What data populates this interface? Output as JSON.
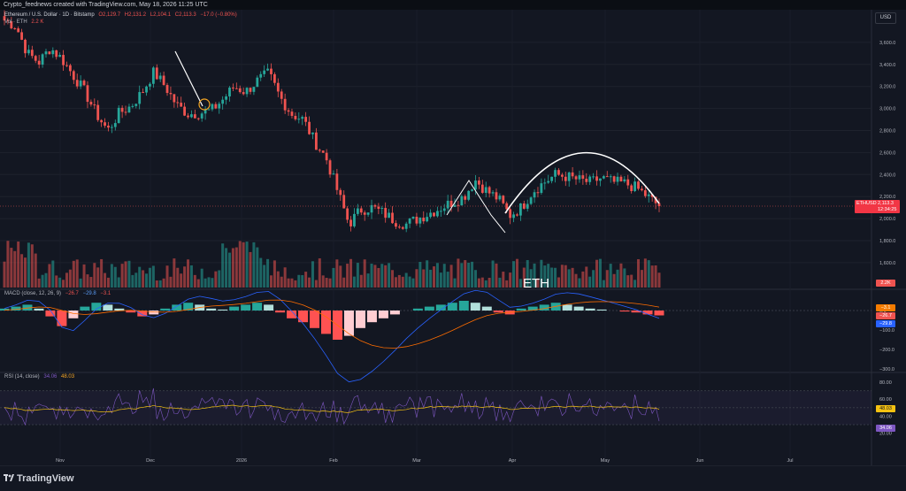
{
  "header": {
    "text": "Crypto_feednews created with TradingView.com, May 18, 2026 11:25 UTC"
  },
  "legend": {
    "title": "Ethereum / U.S. Dollar · 1D · Bitstamp",
    "open": "O2,129.7",
    "high": "H2,131.2",
    "low": "L2,104.1",
    "close": "C2,113.3",
    "change": "−17.0 (−0.80%)",
    "volume_label": "Vol · ETH",
    "volume_value": "2.2 K"
  },
  "macd_legend": {
    "label": "MACD (close, 12, 26, 9)",
    "v1": "−26.7",
    "v2": "−29.8",
    "v3": "−3.1"
  },
  "rsi_legend": {
    "label": "RSI (14, close)",
    "v1": "34.06",
    "v2": "48.03"
  },
  "currency": "USD",
  "watermark": "ETH",
  "price_tag": {
    "symbol": "ETHUSD",
    "price": "2,113.3",
    "countdown": "12:34:25"
  },
  "volume_tag": "2.2K",
  "macd_tags": [
    {
      "text": "−3.1",
      "color": "#f57c00"
    },
    {
      "text": "−26.7",
      "color": "#ef5350"
    },
    {
      "text": "−29.8",
      "color": "#2962ff"
    }
  ],
  "rsi_tags": [
    {
      "text": "48.03",
      "color": "#f5c211"
    },
    {
      "text": "34.06",
      "color": "#7e57c2"
    }
  ],
  "footer": {
    "brand": "TradingView"
  },
  "colors": {
    "up": "#26a69a",
    "down": "#ef5350",
    "bg": "#131722",
    "macd_line": "#2962ff",
    "signal_line": "#ff6d00",
    "rsi_line": "#7e57c2",
    "rsi_ma": "#f5c211"
  },
  "chart_data": {
    "type": "candlestick",
    "title": "Ethereum / U.S. Dollar · 1D · Bitstamp",
    "price_axis": {
      "ticks": [
        1600,
        1800,
        2000,
        2200,
        2400,
        2600,
        2800,
        3000,
        3200,
        3400,
        3600
      ],
      "labels": [
        "1,600.0",
        "1,800.0",
        "2,000.0",
        "2,200.0",
        "2,400.0",
        "2,600.0",
        "2,800.0",
        "3,000.0",
        "3,200.0",
        "3,400.0",
        "3,600.0"
      ]
    },
    "time_axis": [
      "Nov",
      "Dec",
      "2026",
      "Feb",
      "Mar",
      "Apr",
      "May",
      "Jun",
      "Jul"
    ],
    "last_price": 2113.3,
    "price_path": [
      {
        "date": "Oct 20",
        "close": 3800
      },
      {
        "date": "Oct 24",
        "close": 3750
      },
      {
        "date": "Oct 27",
        "close": 3500
      },
      {
        "date": "Nov 01",
        "close": 3420
      },
      {
        "date": "Nov 04",
        "close": 3550
      },
      {
        "date": "Nov 07",
        "close": 3450
      },
      {
        "date": "Nov 10",
        "close": 3300
      },
      {
        "date": "Nov 14",
        "close": 3150
      },
      {
        "date": "Nov 18",
        "close": 2950
      },
      {
        "date": "Nov 22",
        "close": 2800
      },
      {
        "date": "Nov 26",
        "close": 2960
      },
      {
        "date": "Dec 01",
        "close": 3020
      },
      {
        "date": "Dec 05",
        "close": 3150
      },
      {
        "date": "Dec 09",
        "close": 3330
      },
      {
        "date": "Dec 12",
        "close": 3200
      },
      {
        "date": "Dec 16",
        "close": 3030
      },
      {
        "date": "Dec 20",
        "close": 2950
      },
      {
        "date": "Dec 24",
        "close": 2960
      },
      {
        "date": "Dec 28",
        "close": 2980
      },
      {
        "date": "Jan 01",
        "close": 3080
      },
      {
        "date": "Jan 05",
        "close": 3200
      },
      {
        "date": "Jan 09",
        "close": 3150
      },
      {
        "date": "Jan 13",
        "close": 3250
      },
      {
        "date": "Jan 17",
        "close": 3320
      },
      {
        "date": "Jan 21",
        "close": 3100
      },
      {
        "date": "Jan 25",
        "close": 2950
      },
      {
        "date": "Jan 28",
        "close": 2900
      },
      {
        "date": "Jan 31",
        "close": 2700
      },
      {
        "date": "Feb 02",
        "close": 2550
      },
      {
        "date": "Feb 04",
        "close": 2250
      },
      {
        "date": "Feb 06",
        "close": 1950
      },
      {
        "date": "Feb 08",
        "close": 2080
      },
      {
        "date": "Feb 12",
        "close": 2100
      },
      {
        "date": "Feb 16",
        "close": 2050
      },
      {
        "date": "Feb 20",
        "close": 1980
      },
      {
        "date": "Feb 24",
        "close": 1950
      },
      {
        "date": "Feb 28",
        "close": 2000
      },
      {
        "date": "Mar 03",
        "close": 2050
      },
      {
        "date": "Mar 07",
        "close": 2100
      },
      {
        "date": "Mar 11",
        "close": 2150
      },
      {
        "date": "Mar 15",
        "close": 2200
      },
      {
        "date": "Mar 19",
        "close": 2350
      },
      {
        "date": "Mar 23",
        "close": 2250
      },
      {
        "date": "Mar 27",
        "close": 2180
      },
      {
        "date": "Mar 31",
        "close": 2030
      },
      {
        "date": "Apr 03",
        "close": 2100
      },
      {
        "date": "Apr 07",
        "close": 2250
      },
      {
        "date": "Apr 11",
        "close": 2330
      },
      {
        "date": "Apr 15",
        "close": 2400
      },
      {
        "date": "Apr 19",
        "close": 2380
      },
      {
        "date": "Apr 23",
        "close": 2350
      },
      {
        "date": "Apr 27",
        "close": 2330
      },
      {
        "date": "May 01",
        "close": 2370
      },
      {
        "date": "May 05",
        "close": 2330
      },
      {
        "date": "May 09",
        "close": 2320
      },
      {
        "date": "May 12",
        "close": 2280
      },
      {
        "date": "May 15",
        "close": 2200
      },
      {
        "date": "May 18",
        "close": 2113.3
      }
    ],
    "macd": {
      "axis_ticks": [
        0,
        -100,
        -200,
        -300
      ],
      "axis_labels": [
        "0.0",
        "−100.0",
        "−200.0",
        "−300.0"
      ],
      "histogram": [
        10,
        20,
        30,
        10,
        -30,
        -80,
        -40,
        20,
        40,
        30,
        10,
        -10,
        -30,
        -20,
        10,
        30,
        40,
        30,
        10,
        5,
        20,
        30,
        40,
        30,
        -10,
        -40,
        -60,
        -90,
        -120,
        -150,
        -130,
        -90,
        -60,
        -40,
        -20,
        0,
        10,
        20,
        30,
        40,
        50,
        40,
        20,
        -10,
        -20,
        10,
        20,
        30,
        40,
        30,
        20,
        10,
        5,
        0,
        -5,
        -10,
        -20,
        -25
      ]
    },
    "rsi": {
      "axis_ticks": [
        80,
        60,
        40,
        20
      ],
      "axis_labels": [
        "80.00",
        "60.00",
        "40.00",
        "20.00"
      ],
      "last": 34.06,
      "ma_last": 48.03
    },
    "annotations": [
      {
        "type": "trendline"
      },
      {
        "type": "trendline"
      },
      {
        "type": "arc"
      }
    ],
    "grid": true
  }
}
